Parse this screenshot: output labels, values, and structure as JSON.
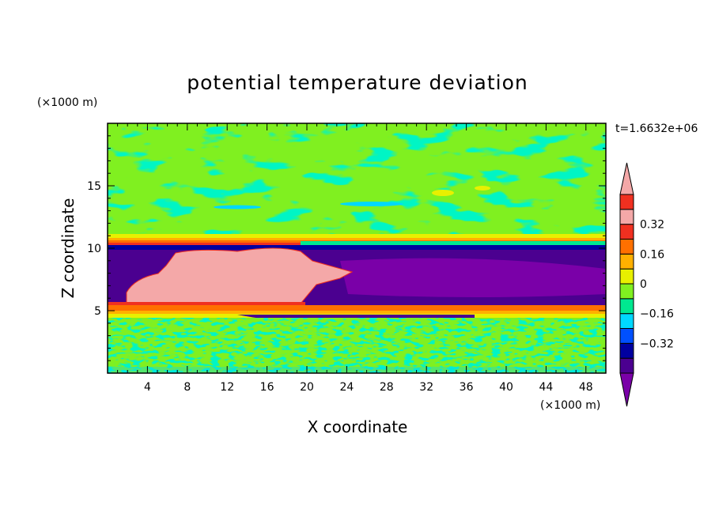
{
  "chart_data": {
    "type": "heatmap",
    "title": "potential temperature deviation",
    "xlabel": "X coordinate",
    "ylabel": "Z coordinate",
    "x_units": "(×1000 m)",
    "y_units": "(×1000 m)",
    "time_label": "t=1.6632e+06",
    "xlim": [
      0,
      50
    ],
    "ylim": [
      0,
      20
    ],
    "x_ticks": [
      4,
      8,
      12,
      16,
      20,
      24,
      28,
      32,
      36,
      40,
      44,
      48
    ],
    "y_ticks": [
      5,
      10,
      15
    ],
    "colorbar": {
      "levels": [
        -0.48,
        -0.4,
        -0.32,
        -0.24,
        -0.16,
        -0.08,
        0,
        0.08,
        0.16,
        0.24,
        0.32,
        0.4,
        0.48
      ],
      "labeled_levels": [
        -0.32,
        -0.16,
        0,
        0.16,
        0.32
      ],
      "labels": [
        "0.32",
        "0.16",
        "0",
        "−0.16",
        "−0.32"
      ],
      "colors": [
        "#7a00a8",
        "#4b0090",
        "#0000a0",
        "#0050ff",
        "#00d8ff",
        "#00e890",
        "#80f020",
        "#e8f000",
        "#ffb000",
        "#ff7000",
        "#f03020",
        "#f4a8a8"
      ],
      "extend": "both"
    },
    "layers": [
      {
        "z_range": [
          0,
          4.5
        ],
        "pattern": "noisy mix of green and light green",
        "approx_value": 0
      },
      {
        "z_range": [
          4.5,
          5.8
        ],
        "pattern": "warm bands (yellow / orange / red)",
        "approx_value": 0.3
      },
      {
        "z_range": [
          5.8,
          10.1
        ],
        "x_range": [
          0,
          24
        ],
        "pattern": "warm anomaly",
        "approx_value": 0.45
      },
      {
        "z_range": [
          4.5,
          10.1
        ],
        "x_range": [
          21,
          50
        ],
        "pattern": "cold anomaly",
        "approx_value": -0.45
      },
      {
        "z_range": [
          10.1,
          11
        ],
        "pattern": "thin warm inversion layer",
        "approx_value": 0.24
      },
      {
        "z_range": [
          11,
          20
        ],
        "pattern": "light green with streaks",
        "approx_value": 0.04
      }
    ]
  }
}
